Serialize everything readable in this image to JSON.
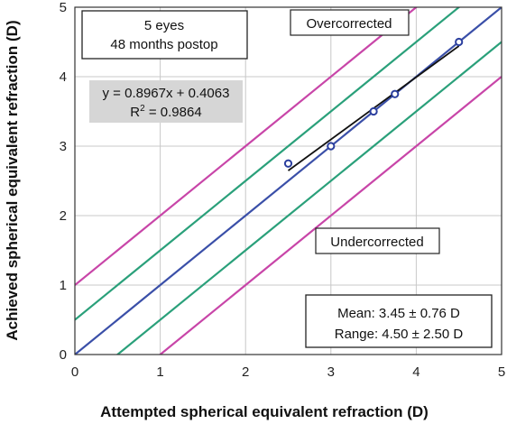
{
  "chart_data": {
    "type": "scatter",
    "xlabel": "Attempted spherical equivalent refraction (D)",
    "ylabel": "Achieved spherical equivalent refraction (D)",
    "xlim": [
      0,
      5
    ],
    "ylim": [
      0,
      5
    ],
    "x_ticks": [
      "0",
      "1",
      "2",
      "3",
      "4",
      "5"
    ],
    "y_ticks": [
      "0",
      "1",
      "2",
      "3",
      "4",
      "5"
    ],
    "grid": true,
    "points": [
      {
        "x": 2.5,
        "y": 2.75
      },
      {
        "x": 3.0,
        "y": 3.0
      },
      {
        "x": 3.5,
        "y": 3.5
      },
      {
        "x": 3.75,
        "y": 3.75
      },
      {
        "x": 4.5,
        "y": 4.5
      }
    ],
    "point_color": "#2b3f9e",
    "reference_lines": [
      {
        "offset": 0,
        "color": "#3a4fa8"
      },
      {
        "offset": 0.5,
        "color": "#2aa07a"
      },
      {
        "offset": -0.5,
        "color": "#2aa07a"
      },
      {
        "offset": 1.0,
        "color": "#c845a8"
      },
      {
        "offset": -1.0,
        "color": "#c845a8"
      }
    ],
    "trendline": {
      "slope": 0.8967,
      "intercept": 0.4063,
      "x_range": [
        2.5,
        4.5
      ],
      "color": "#111111"
    },
    "annotations": {
      "sample_line1": "5 eyes",
      "sample_line2": "48 months postop",
      "equation": "y = 0.8967x + 0.4063",
      "r2_prefix": "R",
      "r2_sup": "2",
      "r2_suffix": " = 0.9864",
      "overcorrected": "Overcorrected",
      "undercorrected": "Undercorrected",
      "mean": "Mean: 3.45 ± 0.76 D",
      "range": "Range: 4.50 ± 2.50 D"
    }
  }
}
